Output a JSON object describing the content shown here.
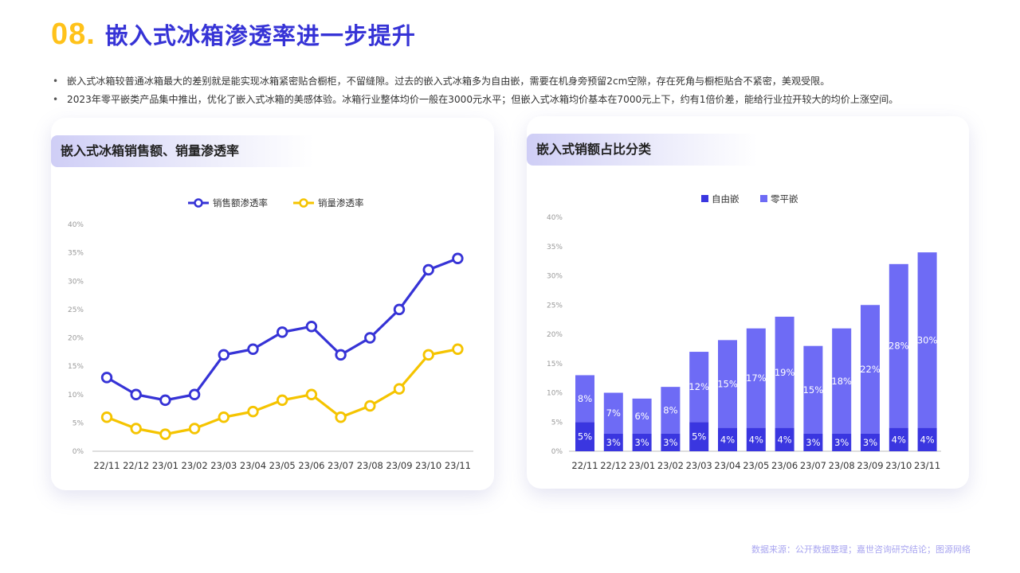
{
  "header": {
    "number": "08.",
    "title": "嵌入式冰箱渗透率进一步提升"
  },
  "bullets": [
    "嵌入式冰箱较普通冰箱最大的差别就是能实现冰箱紧密贴合橱柜，不留缝隙。过去的嵌入式冰箱多为自由嵌，需要在机身旁预留2cm空隙，存在死角与橱柜贴合不紧密，美观受限。",
    "2023年零平嵌类产品集中推出，优化了嵌入式冰箱的美感体验。冰箱行业整体均价一般在3000元水平；但嵌入式冰箱均价基本在7000元上下，约有1倍价差，能给行业拉开较大的均价上涨空间。"
  ],
  "left_card": {
    "title": "嵌入式冰箱销售额、销量渗透率"
  },
  "right_card": {
    "title": "嵌入式销额占比分类"
  },
  "source": "数据来源：公开数据整理；嘉世咨询研究结论；图源网络",
  "colors": {
    "accent": "#3633D6",
    "yellow": "#FFC21A",
    "bar_dark": "#3A36E0",
    "bar_light": "#6E6BF5"
  },
  "chart_data": [
    {
      "type": "line",
      "title": "嵌入式冰箱销售额、销量渗透率",
      "categories": [
        "22/11",
        "22/12",
        "23/01",
        "23/02",
        "23/03",
        "23/04",
        "23/05",
        "23/06",
        "23/07",
        "23/08",
        "23/09",
        "23/10",
        "23/11"
      ],
      "yticks": [
        "0%",
        "5%",
        "10%",
        "15%",
        "20%",
        "25%",
        "30%",
        "35%",
        "40%"
      ],
      "ylim": [
        0,
        40
      ],
      "legend_position": "top",
      "grid": false,
      "series": [
        {
          "name": "销售额渗透率",
          "color": "#3633D6",
          "values": [
            13,
            10,
            9,
            10,
            17,
            18,
            21,
            22,
            17,
            20,
            25,
            32,
            34
          ]
        },
        {
          "name": "销量渗透率",
          "color": "#F5C400",
          "values": [
            6,
            4,
            3,
            4,
            6,
            7,
            9,
            10,
            6,
            8,
            11,
            17,
            18
          ]
        }
      ]
    },
    {
      "type": "bar",
      "stacked": true,
      "title": "嵌入式销额占比分类",
      "categories": [
        "22/11",
        "22/12",
        "23/01",
        "23/02",
        "23/03",
        "23/04",
        "23/05",
        "23/06",
        "23/07",
        "23/08",
        "23/09",
        "23/10",
        "23/11"
      ],
      "yticks": [
        "0%",
        "5%",
        "10%",
        "15%",
        "20%",
        "25%",
        "30%",
        "35%",
        "40%"
      ],
      "ylim": [
        0,
        40
      ],
      "legend_position": "top",
      "grid": false,
      "series": [
        {
          "name": "自由嵌",
          "color": "#3A36E0",
          "values": [
            5,
            3,
            3,
            3,
            5,
            4,
            4,
            4,
            3,
            3,
            3,
            4,
            4
          ],
          "labels": [
            "5%",
            "3%",
            "3%",
            "3%",
            "5%",
            "4%",
            "4%",
            "4%",
            "3%",
            "3%",
            "3%",
            "4%",
            "4%"
          ]
        },
        {
          "name": "零平嵌",
          "color": "#6E6BF5",
          "values": [
            8,
            7,
            6,
            8,
            12,
            15,
            17,
            19,
            15,
            18,
            22,
            28,
            30
          ],
          "labels": [
            "8%",
            "7%",
            "6%",
            "8%",
            "12%",
            "15%",
            "17%",
            "19%",
            "15%",
            "18%",
            "22%",
            "28%",
            "30%"
          ]
        }
      ]
    }
  ]
}
